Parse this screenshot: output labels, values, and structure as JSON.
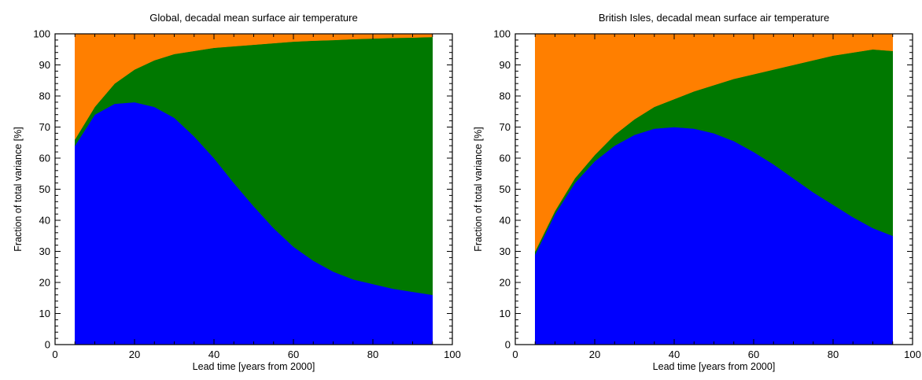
{
  "chart_data": [
    {
      "type": "area",
      "stacked": true,
      "title": "Global, decadal mean surface air temperature",
      "xlabel": "Lead time  [years from 2000]",
      "ylabel": "Fraction of total variance  [%]",
      "xlim": [
        0,
        100
      ],
      "ylim": [
        0,
        100
      ],
      "xticks": [
        0,
        20,
        40,
        60,
        80,
        100
      ],
      "yticks": [
        0,
        10,
        20,
        30,
        40,
        50,
        60,
        70,
        80,
        90,
        100
      ],
      "x": [
        5,
        10,
        15,
        20,
        25,
        30,
        35,
        40,
        45,
        50,
        55,
        60,
        65,
        70,
        75,
        80,
        85,
        90,
        95
      ],
      "series": [
        {
          "color": "#0000ff",
          "values": [
            64,
            74,
            77.5,
            78,
            76.5,
            73,
            67,
            60,
            52,
            44.5,
            37.5,
            31.5,
            27,
            23.5,
            21,
            19.5,
            18,
            17,
            16
          ]
        },
        {
          "color": "#007800",
          "values": [
            2,
            2.5,
            6.5,
            10.5,
            15,
            20.5,
            27.5,
            35.5,
            44,
            52,
            59.5,
            66,
            70.8,
            74.5,
            77.3,
            79,
            80.7,
            81.8,
            83
          ]
        },
        {
          "color": "#ff7f00",
          "values": [
            34,
            23.5,
            16,
            11.5,
            8.5,
            6.5,
            5.5,
            4.5,
            4,
            3.5,
            3,
            2.5,
            2.2,
            2,
            1.7,
            1.5,
            1.3,
            1.2,
            1
          ]
        }
      ]
    },
    {
      "type": "area",
      "stacked": true,
      "title": "British Isles, decadal mean surface air temperature",
      "xlabel": "Lead time  [years from 2000]",
      "ylabel": "Fraction of total variance  [%]",
      "xlim": [
        0,
        100
      ],
      "ylim": [
        0,
        100
      ],
      "xticks": [
        0,
        20,
        40,
        60,
        80,
        100
      ],
      "yticks": [
        0,
        10,
        20,
        30,
        40,
        50,
        60,
        70,
        80,
        90,
        100
      ],
      "x": [
        5,
        10,
        15,
        20,
        25,
        30,
        35,
        40,
        45,
        50,
        55,
        60,
        65,
        70,
        75,
        80,
        85,
        90,
        95
      ],
      "series": [
        {
          "color": "#0000ff",
          "values": [
            29,
            42,
            52,
            59,
            64,
            67.5,
            69.5,
            70,
            69.5,
            68,
            65.5,
            62,
            58,
            53.5,
            49,
            45,
            41,
            37.5,
            35
          ]
        },
        {
          "color": "#007800",
          "values": [
            1,
            1,
            1.5,
            2,
            3.5,
            5,
            7,
            9,
            12,
            15.5,
            20,
            25,
            30.5,
            36.5,
            42.5,
            48,
            53,
            57.5,
            59.5
          ]
        },
        {
          "color": "#ff7f00",
          "values": [
            70,
            57,
            46.5,
            39,
            32.5,
            27.5,
            23.5,
            21,
            18.5,
            16.5,
            14.5,
            13,
            11.5,
            10,
            8.5,
            7,
            6,
            5,
            5.5
          ]
        }
      ]
    }
  ]
}
